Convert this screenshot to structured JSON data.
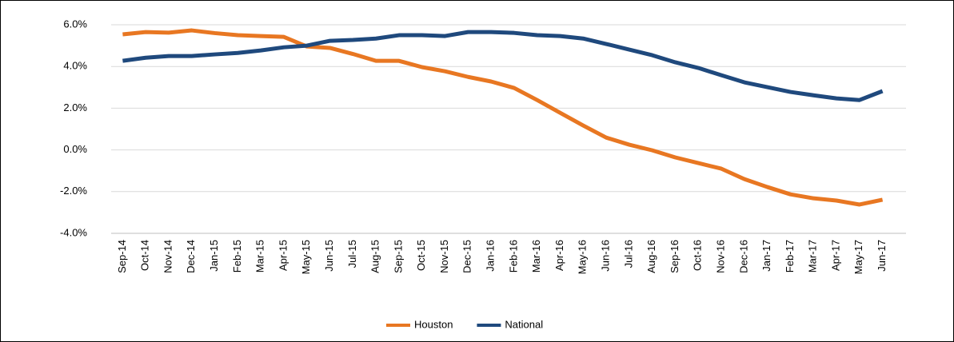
{
  "chart_data": {
    "type": "line",
    "categories": [
      "Sep-14",
      "Oct-14",
      "Nov-14",
      "Dec-14",
      "Jan-15",
      "Feb-15",
      "Mar-15",
      "Apr-15",
      "May-15",
      "Jun-15",
      "Jul-15",
      "Aug-15",
      "Sep-15",
      "Oct-15",
      "Nov-15",
      "Dec-15",
      "Jan-16",
      "Feb-16",
      "Mar-16",
      "Apr-16",
      "May-16",
      "Jun-16",
      "Jul-16",
      "Aug-16",
      "Sep-16",
      "Oct-16",
      "Nov-16",
      "Dec-16",
      "Jan-17",
      "Feb-17",
      "Mar-17",
      "Apr-17",
      "May-17",
      "Jun-17"
    ],
    "series": [
      {
        "name": "Houston",
        "color": "#e87722",
        "values": [
          5.54,
          5.65,
          5.62,
          5.73,
          5.6,
          5.5,
          5.46,
          5.42,
          4.96,
          4.89,
          4.6,
          4.27,
          4.27,
          3.97,
          3.77,
          3.5,
          3.28,
          2.97,
          2.39,
          1.78,
          1.17,
          0.59,
          0.25,
          -0.02,
          -0.36,
          -0.63,
          -0.9,
          -1.4,
          -1.78,
          -2.13,
          -2.32,
          -2.43,
          -2.62,
          -2.39
        ]
      },
      {
        "name": "National",
        "color": "#1f497d",
        "values": [
          4.27,
          4.42,
          4.5,
          4.5,
          4.58,
          4.65,
          4.77,
          4.92,
          5.0,
          5.23,
          5.27,
          5.34,
          5.5,
          5.5,
          5.46,
          5.65,
          5.65,
          5.61,
          5.5,
          5.46,
          5.34,
          5.08,
          4.81,
          4.54,
          4.2,
          3.93,
          3.58,
          3.24,
          3.01,
          2.78,
          2.62,
          2.47,
          2.39,
          2.82
        ]
      }
    ],
    "ylim": [
      -4,
      6
    ],
    "yticks": [
      {
        "value": -4,
        "label": "-4.0%"
      },
      {
        "value": -2,
        "label": "-2.0%"
      },
      {
        "value": 0,
        "label": "0.0%"
      },
      {
        "value": 2,
        "label": "2.0%"
      },
      {
        "value": 4,
        "label": "4.0%"
      },
      {
        "value": 6,
        "label": "6.0%"
      }
    ],
    "grid": true,
    "legend": "bottom"
  }
}
